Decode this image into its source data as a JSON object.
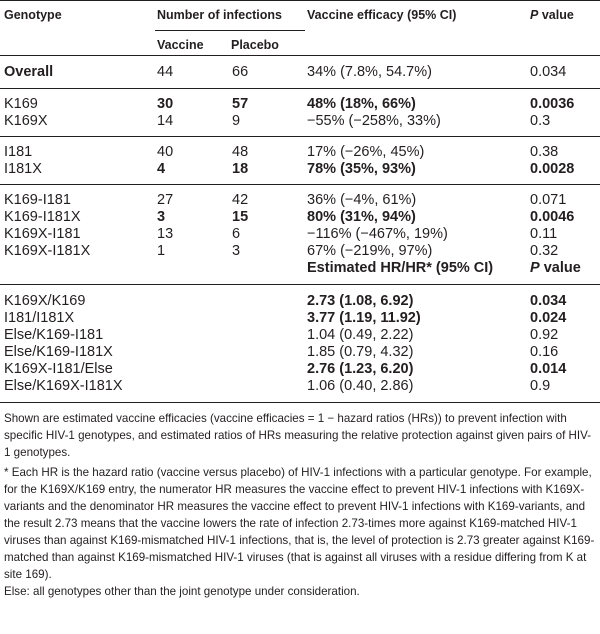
{
  "header": {
    "genotype": "Genotype",
    "num_infections": "Number of infections",
    "vaccine_efficacy": "Vaccine efficacy (95% CI)",
    "p_label": "P",
    "value_label": " value",
    "vaccine": "Vaccine",
    "placebo": "Placebo"
  },
  "rows": [
    {
      "genotype": "Overall",
      "vaccine": "44",
      "placebo": "66",
      "efficacy": "34% (7.8%, 54.7%)",
      "p": "0.034"
    },
    {
      "genotype": "K169",
      "vaccine": "30",
      "placebo": "57",
      "efficacy": "48% (18%, 66%)",
      "p": "0.0036"
    },
    {
      "genotype": "K169X",
      "vaccine": "14",
      "placebo": "9",
      "efficacy": "−55% (−258%, 33%)",
      "p": "0.3"
    },
    {
      "genotype": "I181",
      "vaccine": "40",
      "placebo": "48",
      "efficacy": "17% (−26%, 45%)",
      "p": "0.38"
    },
    {
      "genotype": "I181X",
      "vaccine": "4",
      "placebo": "18",
      "efficacy": "78% (35%, 93%)",
      "p": "0.0028"
    },
    {
      "genotype": "K169-I181",
      "vaccine": "27",
      "placebo": "42",
      "efficacy": "36% (−4%, 61%)",
      "p": "0.071"
    },
    {
      "genotype": "K169-I181X",
      "vaccine": "3",
      "placebo": "15",
      "efficacy": "80% (31%, 94%)",
      "p": "0.0046"
    },
    {
      "genotype": "K169X-I181",
      "vaccine": "13",
      "placebo": "6",
      "efficacy": "−116% (−467%, 19%)",
      "p": "0.11"
    },
    {
      "genotype": "K169X-I181X",
      "vaccine": "1",
      "placebo": "3",
      "efficacy": "67% (−219%, 97%)",
      "p": "0.32"
    }
  ],
  "hr_header": {
    "label": "Estimated HR/HR* (95% CI)",
    "p_label": "P",
    "value_label": " value"
  },
  "hr_rows": [
    {
      "pair": "K169X/K169",
      "hr": "2.73 (1.08, 6.92)",
      "p": "0.034"
    },
    {
      "pair": "I181/I181X",
      "hr": "3.77 (1.19, 11.92)",
      "p": "0.024"
    },
    {
      "pair": "Else/K169-I181",
      "hr": "1.04 (0.49, 2.22)",
      "p": "0.92"
    },
    {
      "pair": "Else/K169-I181X",
      "hr": "1.85 (0.79, 4.32)",
      "p": "0.16"
    },
    {
      "pair": "K169X-I181/Else",
      "hr": "2.76 (1.23, 6.20)",
      "p": "0.014"
    },
    {
      "pair": "Else/K169X-I181X",
      "hr": "1.06 (0.40, 2.86)",
      "p": "0.9"
    }
  ],
  "footnotes": {
    "shown": "Shown are estimated vaccine efficacies (vaccine efficacies = 1 − hazard ratios (HRs)) to prevent infection with specific HIV-1 genotypes, and estimated ratios of HRs measuring the relative protection against given pairs of HIV-1 genotypes.",
    "star": "* Each HR is the hazard ratio (vaccine versus placebo) of HIV-1 infections with a particular genotype. For example, for the K169X/K169 entry, the numerator HR measures the vaccine effect to prevent HIV-1 infections with K169X-variants and the denominator HR measures the vaccine effect to prevent HIV-1 infections with K169-variants, and the result 2.73 means that the vaccine lowers the rate of infection 2.73-times more against K169-matched HIV-1 viruses than against K169-mismatched HIV-1 infections, that is, the level of protection is 2.73 greater against K169-matched than against K169-mismatched HIV-1 viruses (that is against all viruses with a residue differing from K at site 169).",
    "else": "Else: all genotypes other than the joint genotype under consideration."
  },
  "colors": {
    "rule": "#231f20",
    "text": "#231f20"
  }
}
